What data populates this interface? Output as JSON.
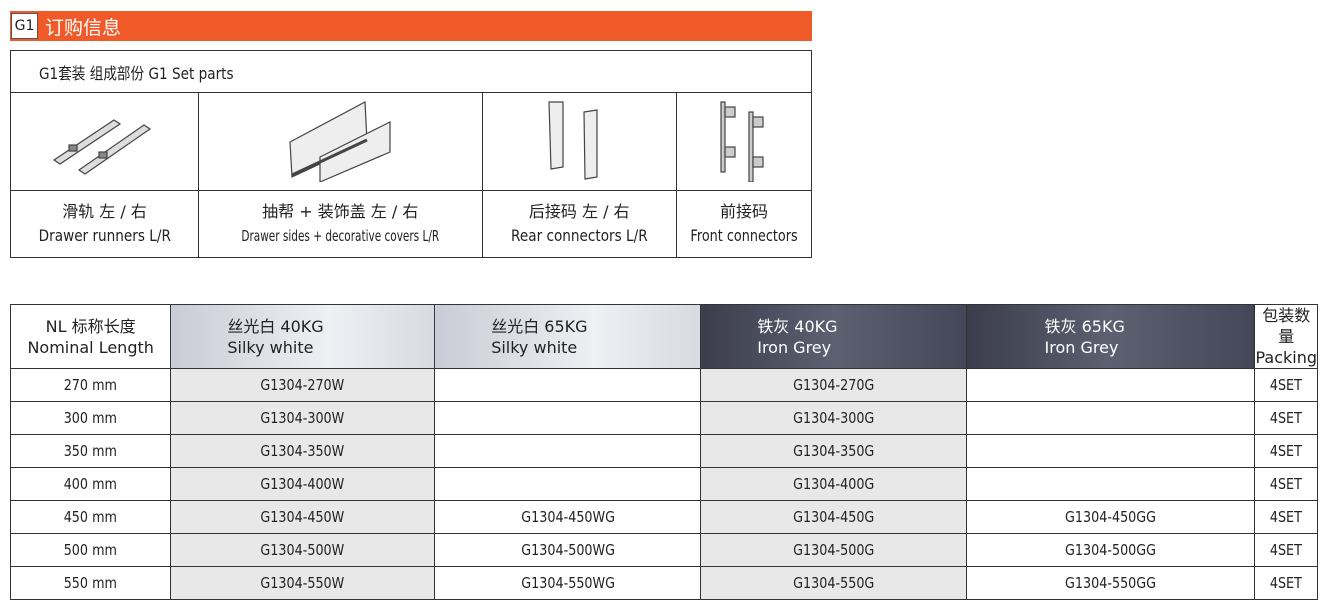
{
  "banner": {
    "code": "G1",
    "title": "订购信息",
    "color": "#f05a28"
  },
  "parts": {
    "title": "G1套装  组成部份   G1 Set parts",
    "items": [
      {
        "icon": "drawer-runners-image",
        "cn": "滑轨 左 / 右",
        "en": "Drawer runners  L/R"
      },
      {
        "icon": "drawer-sides-image",
        "cn": "抽帮 + 装饰盖 左 / 右",
        "en": "Drawer sides + decorative covers  L/R"
      },
      {
        "icon": "rear-connectors-image",
        "cn": "后接码 左 / 右",
        "en": "Rear connectors  L/R"
      },
      {
        "icon": "front-connectors-image",
        "cn": "前接码",
        "en": "Front connectors"
      }
    ]
  },
  "order": {
    "headers": [
      {
        "cn": "NL 标称长度",
        "en": "Nominal Length"
      },
      {
        "cn": "丝光白     40KG",
        "en": "Silky white"
      },
      {
        "cn": "丝光白     65KG",
        "en": "Silky white"
      },
      {
        "cn": "铁灰    40KG",
        "en": "Iron Grey"
      },
      {
        "cn": "铁灰   65KG",
        "en": "Iron Grey"
      },
      {
        "cn": "包装数量",
        "en": "Packing"
      }
    ],
    "rows": [
      [
        "270 mm",
        "G1304-270W",
        "",
        "G1304-270G",
        "",
        "4SET"
      ],
      [
        "300 mm",
        "G1304-300W",
        "",
        "G1304-300G",
        "",
        "4SET"
      ],
      [
        "350 mm",
        "G1304-350W",
        "",
        "G1304-350G",
        "",
        "4SET"
      ],
      [
        "400 mm",
        "G1304-400W",
        "",
        "G1304-400G",
        "",
        "4SET"
      ],
      [
        "450 mm",
        "G1304-450W",
        "G1304-450WG",
        "G1304-450G",
        "G1304-450GG",
        "4SET"
      ],
      [
        "500 mm",
        "G1304-500W",
        "G1304-500WG",
        "G1304-500G",
        "G1304-500GG",
        "4SET"
      ],
      [
        "550 mm",
        "G1304-550W",
        "G1304-550WG",
        "G1304-550G",
        "G1304-550GG",
        "4SET"
      ]
    ]
  }
}
